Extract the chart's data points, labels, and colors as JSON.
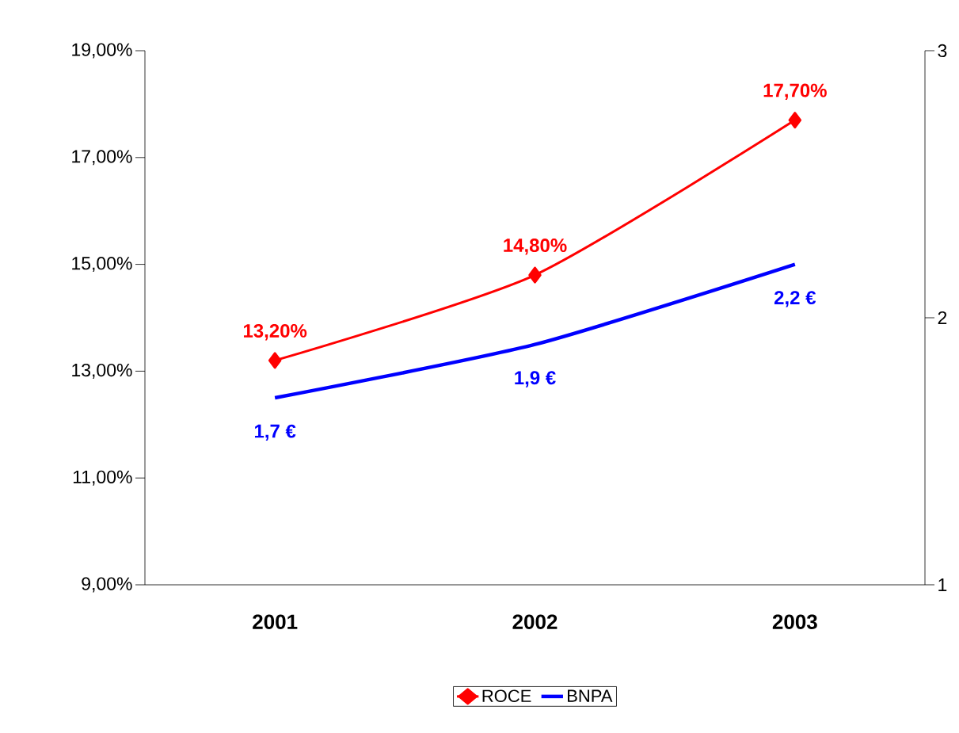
{
  "chart_data": {
    "type": "line",
    "categories": [
      "2001",
      "2002",
      "2003"
    ],
    "series": [
      {
        "name": "ROCE",
        "color": "#ff0000",
        "values": [
          13.2,
          14.8,
          17.7
        ],
        "marker": "diamond",
        "value_labels": [
          "13,20%",
          "14,80%",
          "17,70%"
        ]
      },
      {
        "name": "BNPA",
        "color": "#0000ff",
        "values": [
          1.7,
          1.9,
          2.2
        ],
        "axis": "y2",
        "marker": "none",
        "value_labels": [
          "1,7 €",
          "1,9 €",
          "2,2 €"
        ]
      }
    ],
    "ylim": [
      9,
      19
    ],
    "yticks": [
      {
        "value": 9,
        "label": "9,00%"
      },
      {
        "value": 11,
        "label": "11,00%"
      },
      {
        "value": 13,
        "label": "13,00%"
      },
      {
        "value": 15,
        "label": "15,00%"
      },
      {
        "value": 17,
        "label": "17,00%"
      },
      {
        "value": 19,
        "label": "19,00%"
      }
    ],
    "y2lim": [
      1,
      3
    ],
    "y2ticks": [
      1,
      2,
      3
    ],
    "legend": "bottom",
    "grid": false,
    "line_style": "solid"
  }
}
